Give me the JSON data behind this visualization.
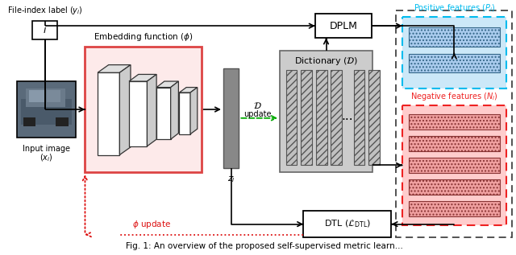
{
  "fig_width": 6.4,
  "fig_height": 3.17,
  "bg_color": "#ffffff",
  "caption": "Fig. 1: An overview of the proposed self-supervised metric learn...",
  "title_label": "File-index label $(y_i)$",
  "input_label1": "Input image",
  "input_label2": "$(x_i)$",
  "embed_label": "Embedding function $(\\phi)$",
  "zi_label": "$z_i$",
  "d_update": "$\\mathcal{D}$\nupdate",
  "dict_label": "Dictionary $(\\mathcal{D})$",
  "dplm_label": "DPLM",
  "dtl_label": "DTL $(\\mathcal{L}_{\\mathrm{DTL}})$",
  "pos_title": "Positive features $(P_i)$",
  "neg_title": "Negative features $(N_i)$",
  "phi_update": "$\\phi$ update",
  "arrow_color": "#000000",
  "green_color": "#00aa00",
  "red_color": "#dd1111",
  "pos_ec": "#00bbee",
  "pos_fc": "#cce8f8",
  "neg_ec": "#ee2222",
  "neg_fc": "#ffcccc",
  "pos_bar_fc": "#aaccee",
  "neg_bar_fc": "#f0a0a0",
  "embed_ec": "#dd4444",
  "embed_fc": "#fdeaea",
  "dict_fc": "#cccccc",
  "dict_ec": "#666666",
  "outer_ec": "#444444"
}
